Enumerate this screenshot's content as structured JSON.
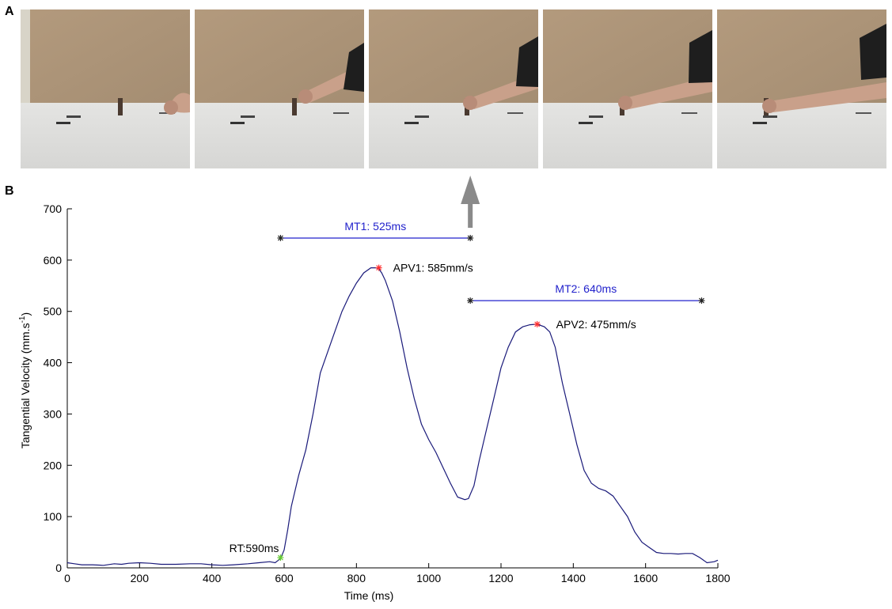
{
  "panels": {
    "a_label": "A",
    "b_label": "B"
  },
  "photos": [
    {
      "id": "frame-1",
      "hand_position": "start"
    },
    {
      "id": "frame-2",
      "hand_position": "reaching"
    },
    {
      "id": "frame-3",
      "hand_position": "grasp"
    },
    {
      "id": "frame-4",
      "hand_position": "transport"
    },
    {
      "id": "frame-5",
      "hand_position": "place"
    }
  ],
  "colors": {
    "trace": "#1a1a7a",
    "interval": "#2222cc",
    "peak_marker": "#ff3030",
    "rt_marker": "#66cc33",
    "arrow": "#8a8a8a"
  },
  "chart_data": {
    "type": "line",
    "title": "",
    "xlabel": "Time (ms)",
    "ylabel_main": "Tangential Velocity (mm.s",
    "ylabel_sup": "-1",
    "ylabel_close": ")",
    "xlim": [
      0,
      1800
    ],
    "ylim": [
      0,
      700
    ],
    "xticks": [
      0,
      200,
      400,
      600,
      800,
      1000,
      1200,
      1400,
      1600,
      1800
    ],
    "yticks": [
      0,
      100,
      200,
      300,
      400,
      500,
      600,
      700
    ],
    "grid": false,
    "series": [
      {
        "x": [
          0,
          20,
          40,
          70,
          100,
          130,
          150,
          170,
          200,
          230,
          260,
          300,
          340,
          370,
          400,
          430,
          460,
          500,
          530,
          560,
          575,
          590,
          600,
          610,
          620,
          640,
          660,
          680,
          700,
          720,
          740,
          760,
          780,
          800,
          820,
          840,
          855,
          862,
          870,
          880,
          900,
          920,
          940,
          960,
          980,
          1000,
          1020,
          1040,
          1060,
          1080,
          1100,
          1110,
          1125,
          1140,
          1160,
          1180,
          1200,
          1220,
          1240,
          1260,
          1280,
          1300,
          1320,
          1335,
          1350,
          1370,
          1390,
          1410,
          1430,
          1450,
          1470,
          1490,
          1510,
          1530,
          1550,
          1570,
          1590,
          1610,
          1630,
          1650,
          1670,
          1690,
          1710,
          1730,
          1750,
          1770,
          1790,
          1800
        ],
        "y": [
          10,
          8,
          6,
          6,
          5,
          8,
          7,
          9,
          10,
          9,
          7,
          7,
          8,
          8,
          6,
          5,
          6,
          8,
          10,
          12,
          10,
          18,
          35,
          75,
          120,
          180,
          230,
          300,
          380,
          420,
          460,
          500,
          530,
          555,
          575,
          585,
          585,
          583,
          575,
          560,
          520,
          460,
          390,
          330,
          280,
          250,
          225,
          195,
          165,
          138,
          133,
          135,
          160,
          210,
          270,
          330,
          390,
          430,
          460,
          470,
          474,
          475,
          470,
          460,
          430,
          360,
          300,
          240,
          190,
          165,
          155,
          150,
          140,
          120,
          100,
          70,
          50,
          40,
          30,
          28,
          28,
          27,
          28,
          28,
          20,
          10,
          12,
          15
        ]
      }
    ],
    "interval_mt1": {
      "label": "MT1: 525ms",
      "x_start": 590,
      "x_end": 1115,
      "y": 643
    },
    "interval_mt2": {
      "label": "MT2: 640ms",
      "x_start": 1115,
      "x_end": 1755,
      "y": 521
    },
    "peak_apv1": {
      "label": "APV1: 585mm/s",
      "x": 862,
      "y": 585
    },
    "peak_apv2": {
      "label": "APV2: 475mm/s",
      "x": 1300,
      "y": 475
    },
    "rt": {
      "label": "RT:590ms",
      "x": 590,
      "y": 20
    },
    "arrow_x": 1115
  }
}
